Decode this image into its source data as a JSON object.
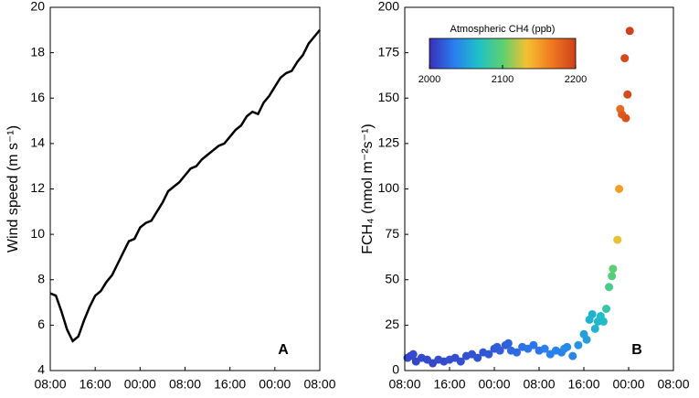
{
  "chart_data": [
    {
      "type": "line",
      "ylabel": "Wind speed (m s⁻¹)",
      "annotation": "A",
      "color": "#000000",
      "x": [
        0,
        1,
        2,
        3,
        4,
        5,
        6,
        7,
        8,
        9,
        10,
        11,
        12,
        13,
        14,
        15,
        16,
        17,
        18,
        19,
        20,
        21,
        22,
        23,
        24,
        25,
        26,
        27,
        28,
        29,
        30,
        31,
        32,
        33,
        34,
        35,
        36,
        37,
        38,
        39,
        40,
        41,
        42,
        43,
        44,
        45,
        46,
        47,
        48
      ],
      "y": [
        7.4,
        7.3,
        6.6,
        5.8,
        5.3,
        5.5,
        6.2,
        6.8,
        7.3,
        7.5,
        7.9,
        8.2,
        8.7,
        9.2,
        9.7,
        9.8,
        10.3,
        10.5,
        10.6,
        11.0,
        11.4,
        11.9,
        12.1,
        12.3,
        12.6,
        12.9,
        13.0,
        13.3,
        13.5,
        13.7,
        13.9,
        14.0,
        14.3,
        14.6,
        14.8,
        15.2,
        15.4,
        15.3,
        15.8,
        16.1,
        16.5,
        16.9,
        17.1,
        17.2,
        17.6,
        17.9,
        18.4,
        18.7,
        19.0
      ],
      "xlim": [
        0,
        48
      ],
      "xticks": [
        {
          "value": 0,
          "label": "08:00"
        },
        {
          "value": 8,
          "label": "16:00"
        },
        {
          "value": 16,
          "label": "00:00"
        },
        {
          "value": 24,
          "label": "08:00"
        },
        {
          "value": 32,
          "label": "16:00"
        },
        {
          "value": 40,
          "label": "00:00"
        },
        {
          "value": 48,
          "label": "08:00"
        }
      ],
      "ylim": [
        4,
        20
      ],
      "yticks": [
        4,
        6,
        8,
        10,
        12,
        14,
        16,
        18,
        20
      ]
    },
    {
      "type": "scatter",
      "ylabel": "FCH₄ (nmol m⁻²s⁻¹)",
      "annotation": "B",
      "colorbar_label": "Atmospheric CH4 (ppb)",
      "clim": [
        2000,
        2200
      ],
      "cticks": [
        2000,
        2100,
        2200
      ],
      "colormap": [
        "#3a2fb8",
        "#2a7df0",
        "#1ec0c8",
        "#5cd070",
        "#f5c030",
        "#f07a20",
        "#d0401a"
      ],
      "x": [
        0.5,
        1,
        1.5,
        2,
        3,
        4,
        5,
        6,
        7,
        8,
        9,
        10,
        11,
        12,
        13,
        14,
        15,
        16,
        16.5,
        17,
        18,
        18.5,
        19,
        20,
        21,
        22,
        23,
        24,
        25,
        26,
        27,
        28,
        28.5,
        29,
        30,
        31,
        32,
        32.5,
        33,
        33.5,
        34,
        34.5,
        35,
        35.5,
        36,
        36.5,
        37,
        37.2,
        38,
        38.3,
        38.5,
        38.8,
        39.3,
        39.5,
        39.8,
        40.2
      ],
      "y": [
        7,
        8,
        9,
        5,
        7,
        6,
        4,
        6,
        5,
        6,
        7,
        5,
        8,
        9,
        7,
        10,
        9,
        12,
        13,
        11,
        14,
        15,
        11,
        10,
        13,
        12,
        14,
        11,
        12,
        9,
        11,
        10,
        12,
        13,
        8,
        14,
        20,
        17,
        28,
        31,
        23,
        27,
        30,
        27,
        34,
        46,
        52,
        56,
        72,
        100,
        144,
        141,
        172,
        139,
        152,
        187
      ],
      "c": [
        2010,
        2010,
        2012,
        2010,
        2012,
        2012,
        2010,
        2012,
        2012,
        2014,
        2014,
        2014,
        2015,
        2016,
        2016,
        2017,
        2018,
        2018,
        2020,
        2020,
        2020,
        2022,
        2025,
        2025,
        2028,
        2030,
        2030,
        2030,
        2035,
        2035,
        2035,
        2035,
        2040,
        2040,
        2038,
        2045,
        2050,
        2050,
        2060,
        2060,
        2060,
        2062,
        2065,
        2065,
        2080,
        2090,
        2095,
        2100,
        2130,
        2150,
        2175,
        2185,
        2195,
        2190,
        2195,
        2200
      ],
      "xlim": [
        0,
        48
      ],
      "xticks": [
        {
          "value": 0,
          "label": "08:00"
        },
        {
          "value": 8,
          "label": "16:00"
        },
        {
          "value": 16,
          "label": "00:00"
        },
        {
          "value": 24,
          "label": "08:00"
        },
        {
          "value": 32,
          "label": "16:00"
        },
        {
          "value": 40,
          "label": "00:00"
        },
        {
          "value": 48,
          "label": "08:00"
        }
      ],
      "ylim": [
        0,
        200
      ],
      "yticks": [
        0,
        25,
        50,
        75,
        100,
        125,
        150,
        175,
        200
      ]
    }
  ]
}
